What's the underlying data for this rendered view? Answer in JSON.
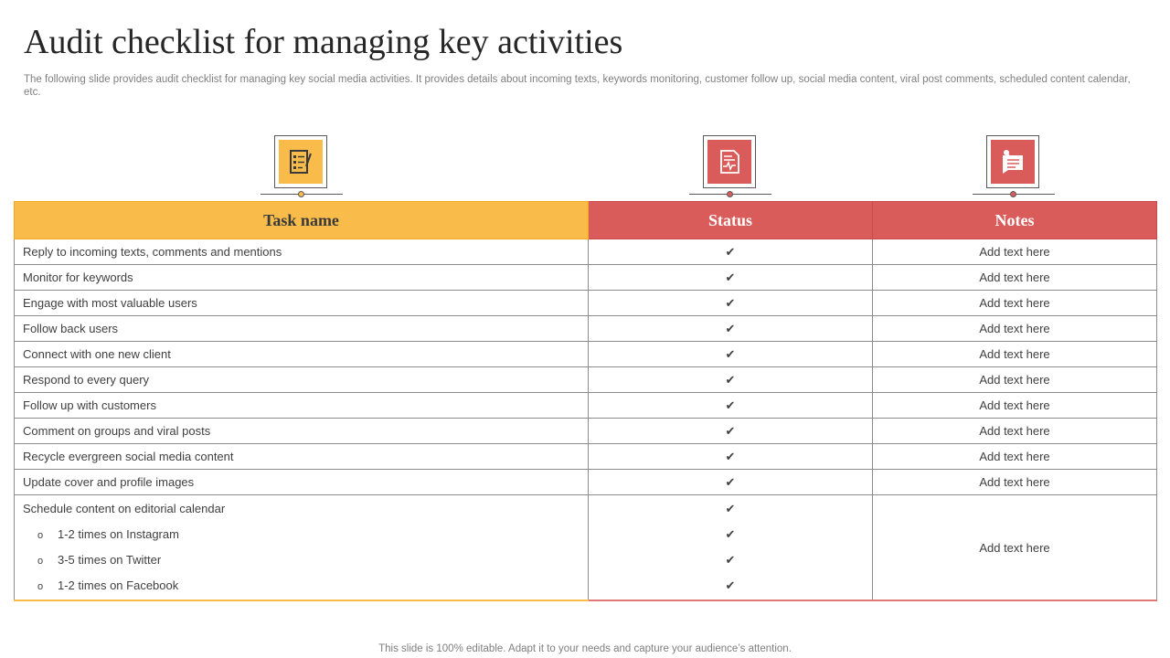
{
  "slide": {
    "title": "Audit checklist for managing key activities",
    "subtitle": "The following slide provides audit checklist for managing key social media activities. It provides details about incoming texts, keywords monitoring, customer follow up, social media content, viral post comments, scheduled content calendar, etc.",
    "footer": "This slide is 100% editable. Adapt it to your needs and capture your audience’s attention."
  },
  "colors": {
    "task_header": "#f9bc4a",
    "status_header": "#d95c5a",
    "notes_header": "#d95c5a"
  },
  "icons": {
    "task": "checklist-clipboard-icon",
    "status": "status-report-icon",
    "notes": "notes-pin-icon"
  },
  "table": {
    "headers": {
      "task": "Task name",
      "status": "Status",
      "notes": "Notes"
    },
    "check_glyph": "✔",
    "rows": [
      {
        "task": "Reply to incoming texts, comments and mentions",
        "status": "✔",
        "notes": "Add text here"
      },
      {
        "task": "Monitor for keywords",
        "status": "✔",
        "notes": "Add text here"
      },
      {
        "task": "Engage with most valuable  users",
        "status": "✔",
        "notes": "Add text here"
      },
      {
        "task": "Follow back users",
        "status": "✔",
        "notes": "Add text here"
      },
      {
        "task": "Connect with one new client",
        "status": "✔",
        "notes": "Add text here"
      },
      {
        "task": "Respond to every  query",
        "status": "✔",
        "notes": "Add text here"
      },
      {
        "task": "Follow up with customers",
        "status": "✔",
        "notes": "Add text here"
      },
      {
        "task": "Comment on groups and viral  posts",
        "status": "✔",
        "notes": "Add text here"
      },
      {
        "task": "Recycle evergreen  social media content",
        "status": "✔",
        "notes": "Add text here"
      },
      {
        "task": "Update cover and profile images",
        "status": "✔",
        "notes": "Add text here"
      }
    ],
    "schedule": {
      "task": "Schedule content on editorial calendar",
      "bullet": "o",
      "subitems": [
        "1-2 times on Instagram",
        "3-5 times on Twitter",
        "1-2 times on Facebook"
      ],
      "notes": "Add text here"
    }
  }
}
